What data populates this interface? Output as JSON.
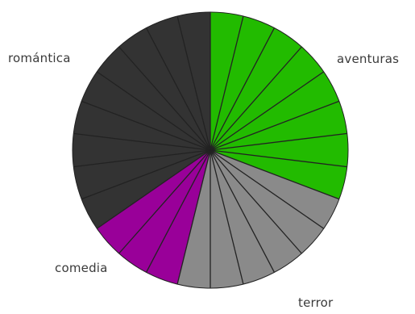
{
  "chart_data": {
    "type": "pie",
    "title": "",
    "slice_unit": "segments",
    "categories": [
      "aventuras",
      "terror",
      "comedia",
      "romántica"
    ],
    "values": [
      8,
      6,
      3,
      9
    ],
    "colors": [
      "#22bb00",
      "#8a8a8a",
      "#990099",
      "#333333"
    ],
    "start_angle_deg": 0,
    "direction": "clockwise",
    "divider_color": "#222222",
    "legend": "direct-labels"
  }
}
